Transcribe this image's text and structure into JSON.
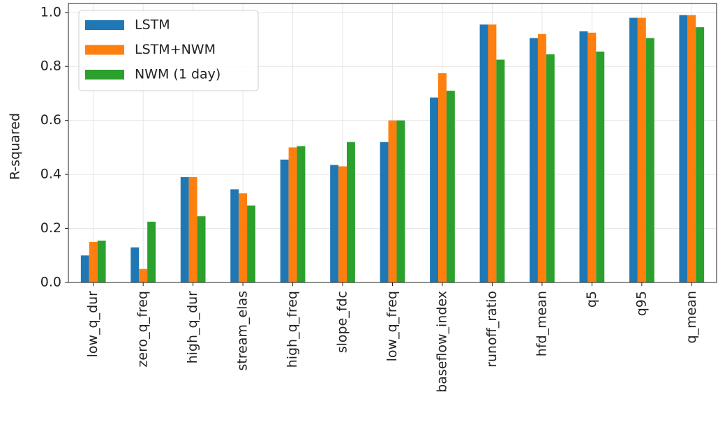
{
  "chart_data": {
    "type": "bar",
    "ylabel": "R-squared",
    "categories": [
      "low_q_dur",
      "zero_q_freq",
      "high_q_dur",
      "stream_elas",
      "high_q_freq",
      "slope_fdc",
      "low_q_freq",
      "baseflow_index",
      "runoff_ratio",
      "hfd_mean",
      "q5",
      "q95",
      "q_mean"
    ],
    "series": [
      {
        "name": "LSTM",
        "color": "#1f77b4",
        "values": [
          0.1,
          0.13,
          0.39,
          0.345,
          0.455,
          0.435,
          0.52,
          0.685,
          0.955,
          0.905,
          0.93,
          0.98,
          0.99
        ]
      },
      {
        "name": "LSTM+NWM",
        "color": "#ff7f0e",
        "values": [
          0.15,
          0.05,
          0.39,
          0.33,
          0.5,
          0.43,
          0.6,
          0.775,
          0.955,
          0.92,
          0.925,
          0.98,
          0.99
        ]
      },
      {
        "name": "NWM (1 day)",
        "color": "#2ca02c",
        "values": [
          0.155,
          0.225,
          0.245,
          0.285,
          0.505,
          0.52,
          0.6,
          0.71,
          0.825,
          0.845,
          0.855,
          0.905,
          0.945
        ]
      }
    ],
    "ylim": [
      0,
      1.033
    ],
    "yticks": [
      {
        "value": 0,
        "label": "0.0"
      },
      {
        "value": 0.2,
        "label": "0.2"
      },
      {
        "value": 0.4,
        "label": "0.4"
      },
      {
        "value": 0.6,
        "label": "0.6"
      },
      {
        "value": 0.8,
        "label": "0.8"
      },
      {
        "value": 1,
        "label": "1.0"
      }
    ],
    "grid": true,
    "legend": "upper-left"
  }
}
